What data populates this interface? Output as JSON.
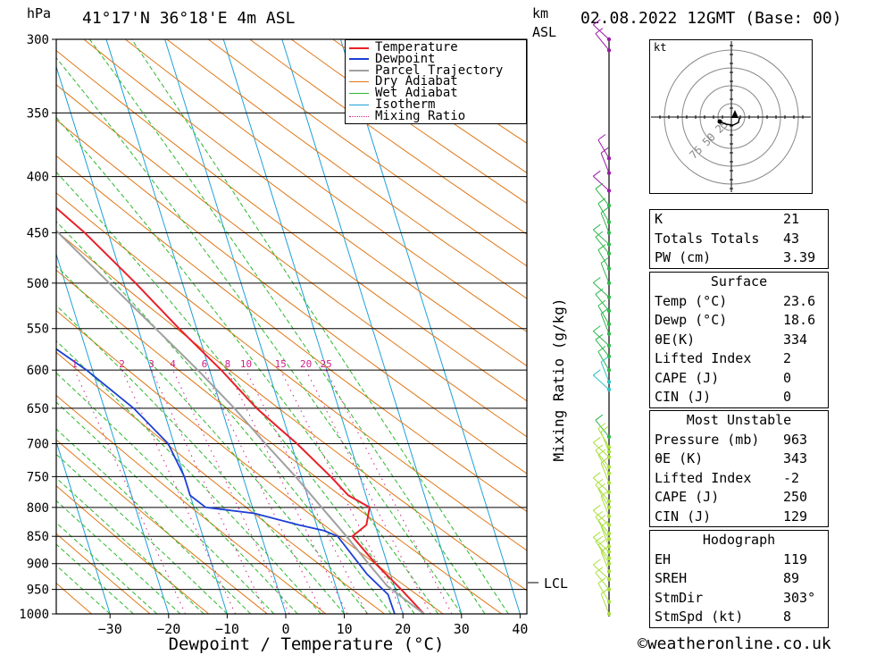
{
  "header": {
    "pressure_unit": "hPa",
    "location": "41°17'N  36°18'E  4m  ASL",
    "km_label": "km",
    "asl_label": "ASL",
    "datetime": "02.08.2022  12GMT  (Base: 00)"
  },
  "legend": [
    "Temperature",
    "Dewpoint",
    "Parcel Trajectory",
    "Dry Adiabat",
    "Wet Adiabat",
    "Isotherm",
    "Mixing Ratio"
  ],
  "colors": {
    "temperature": "#e8202a",
    "dewpoint": "#1c3fd6",
    "parcel": "#a0a0a0",
    "dry_adiabat": "#e07818",
    "wet_adiabat": "#2cb82c",
    "isotherm": "#1fa0d8",
    "mixing_ratio": "#d0208a",
    "wind_upper": "#2db84a",
    "wind_lower": "#a8e03a"
  },
  "chart_data": {
    "type": "skew-t log-p sounding",
    "xlabel": "Dewpoint / Temperature (°C)",
    "ylabel": "hPa",
    "x_ticks": [
      -30,
      -20,
      -10,
      0,
      10,
      20,
      30,
      40
    ],
    "pressure_levels": [
      300,
      350,
      400,
      450,
      500,
      550,
      600,
      650,
      700,
      750,
      800,
      850,
      900,
      950,
      1000
    ],
    "mixing_ratio_label": "Mixing Ratio (g/kg)",
    "mixing_ratio_values": [
      1,
      2,
      3,
      4,
      6,
      8,
      10,
      15,
      20,
      25
    ],
    "lcl_label": "LCL",
    "lcl_pressure": 943,
    "series": [
      {
        "name": "Temperature",
        "points": [
          [
            1000,
            23.6
          ],
          [
            950,
            21
          ],
          [
            900,
            18
          ],
          [
            850,
            15.5
          ],
          [
            830,
            18.5
          ],
          [
            800,
            20
          ],
          [
            780,
            17
          ],
          [
            750,
            15
          ],
          [
            700,
            11
          ],
          [
            680,
            9
          ],
          [
            650,
            6
          ],
          [
            600,
            2
          ],
          [
            550,
            -3
          ],
          [
            500,
            -8
          ],
          [
            450,
            -14
          ],
          [
            400,
            -22
          ],
          [
            390,
            -23
          ],
          [
            360,
            -28
          ]
        ]
      },
      {
        "name": "Dewpoint",
        "points": [
          [
            1000,
            18.6
          ],
          [
            960,
            18.5
          ],
          [
            920,
            16
          ],
          [
            850,
            13
          ],
          [
            840,
            11
          ],
          [
            830,
            7
          ],
          [
            810,
            0
          ],
          [
            800,
            -8
          ],
          [
            780,
            -10
          ],
          [
            750,
            -10
          ],
          [
            700,
            -11
          ],
          [
            650,
            -15
          ],
          [
            600,
            -21
          ],
          [
            550,
            -29
          ],
          [
            500,
            -38
          ],
          [
            450,
            -42
          ],
          [
            400,
            -48
          ],
          [
            350,
            -57
          ],
          [
            300,
            -66
          ]
        ]
      },
      {
        "name": "Parcel Trajectory",
        "points": [
          [
            1000,
            23.6
          ],
          [
            943,
            18.8
          ],
          [
            900,
            16.8
          ],
          [
            850,
            14.5
          ],
          [
            800,
            11.8
          ],
          [
            750,
            9
          ],
          [
            700,
            5.6
          ],
          [
            650,
            2.2
          ],
          [
            600,
            -2
          ],
          [
            550,
            -7
          ],
          [
            500,
            -12.5
          ],
          [
            450,
            -18.5
          ],
          [
            400,
            -26
          ],
          [
            350,
            -35
          ],
          [
            300,
            -45
          ]
        ]
      }
    ],
    "wind_levels_hpa": [
      300,
      307,
      385,
      397,
      412,
      425,
      440,
      450,
      461,
      470,
      485,
      500,
      515,
      530,
      545,
      556,
      570,
      583,
      600,
      615,
      625,
      690,
      705,
      712,
      720,
      735,
      745,
      760,
      775,
      790,
      800,
      815,
      830,
      845,
      855,
      868,
      878,
      890,
      900,
      915,
      930,
      950,
      975,
      1000
    ]
  },
  "hodograph": {
    "unit": "kt",
    "rings": [
      "25",
      "50",
      "75"
    ]
  },
  "indices": {
    "general": [
      {
        "label": "K",
        "value": "21"
      },
      {
        "label": "Totals Totals",
        "value": "43"
      },
      {
        "label": "PW (cm)",
        "value": "3.39"
      }
    ],
    "surface": {
      "title": "Surface",
      "rows": [
        {
          "label": "Temp (°C)",
          "value": "23.6"
        },
        {
          "label": "Dewp (°C)",
          "value": "18.6"
        },
        {
          "label": "θE(K)",
          "value": "334"
        },
        {
          "label": "Lifted Index",
          "value": "2"
        },
        {
          "label": "CAPE (J)",
          "value": "0"
        },
        {
          "label": "CIN (J)",
          "value": "0"
        }
      ]
    },
    "most_unstable": {
      "title": "Most Unstable",
      "rows": [
        {
          "label": "Pressure (mb)",
          "value": "963"
        },
        {
          "label": "θE (K)",
          "value": "343"
        },
        {
          "label": "Lifted Index",
          "value": "-2"
        },
        {
          "label": "CAPE (J)",
          "value": "250"
        },
        {
          "label": "CIN (J)",
          "value": "129"
        }
      ]
    },
    "hodograph_box": {
      "title": "Hodograph",
      "rows": [
        {
          "label": "EH",
          "value": "119"
        },
        {
          "label": "SREH",
          "value": "89"
        },
        {
          "label": "StmDir",
          "value": "303°"
        },
        {
          "label": "StmSpd (kt)",
          "value": "8"
        }
      ]
    }
  },
  "footer": {
    "credit": "©weatheronline.co.uk"
  }
}
